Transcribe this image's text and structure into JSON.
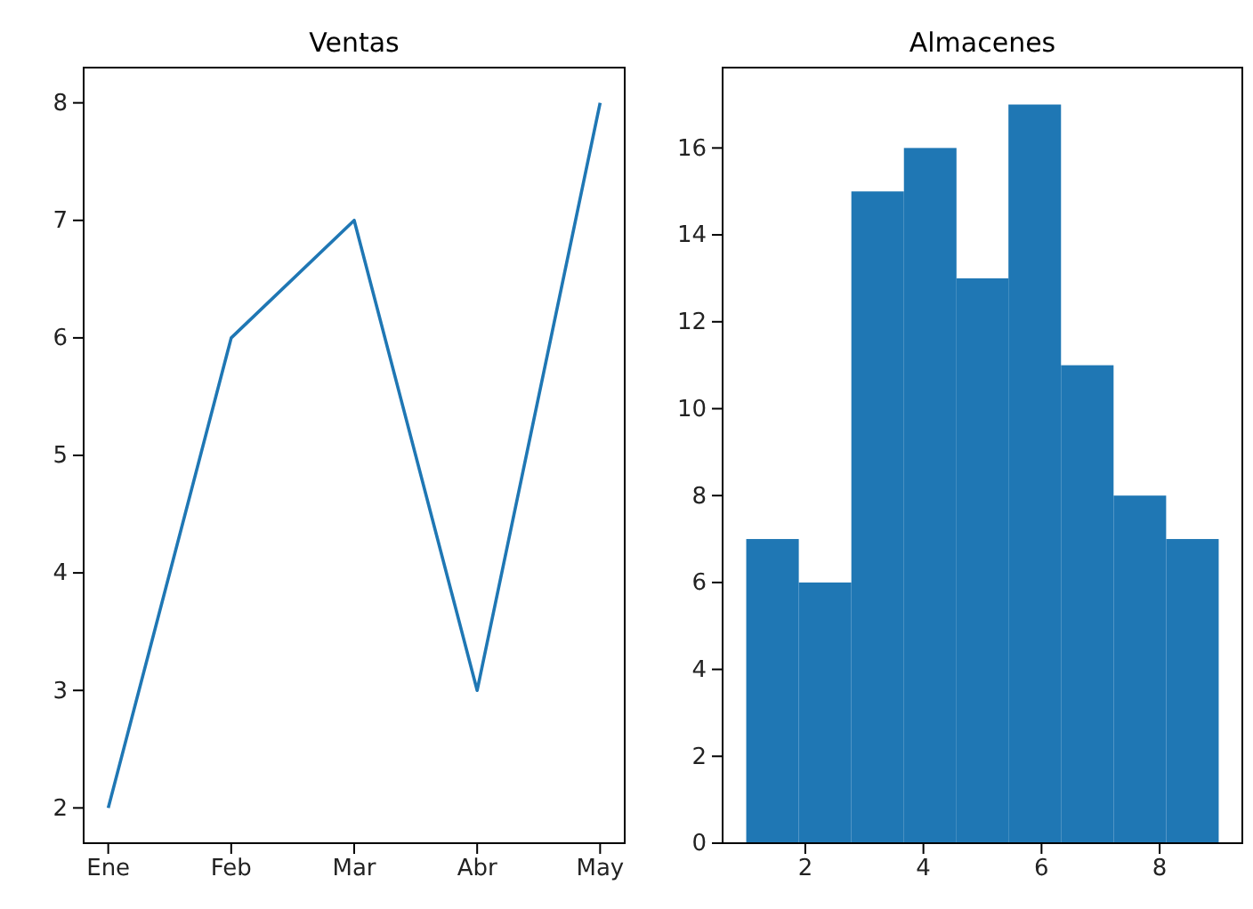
{
  "chart_data": [
    {
      "type": "line",
      "title": "Ventas",
      "categories": [
        "Ene",
        "Feb",
        "Mar",
        "Abr",
        "May"
      ],
      "series": [
        {
          "color": "#1f77b4",
          "values": [
            2,
            6,
            7,
            3,
            8
          ]
        }
      ],
      "ylim": [
        1.7,
        8.3
      ],
      "yticks": [
        2,
        3,
        4,
        5,
        6,
        7,
        8
      ],
      "grid": false,
      "marker": "none",
      "line_style": "solid"
    },
    {
      "type": "histogram",
      "title": "Almacenes",
      "bins": [
        1,
        1.89,
        2.78,
        3.67,
        4.56,
        5.44,
        6.33,
        7.22,
        8.11,
        9
      ],
      "values": [
        7,
        6,
        15,
        16,
        13,
        17,
        11,
        8,
        7
      ],
      "color": "#1f77b4",
      "xlim": [
        0.6,
        9.4
      ],
      "xticks": [
        2,
        4,
        6,
        8
      ],
      "ylim": [
        0,
        17.85
      ],
      "yticks": [
        0,
        2,
        4,
        6,
        8,
        10,
        12,
        14,
        16
      ],
      "grid": false
    }
  ]
}
